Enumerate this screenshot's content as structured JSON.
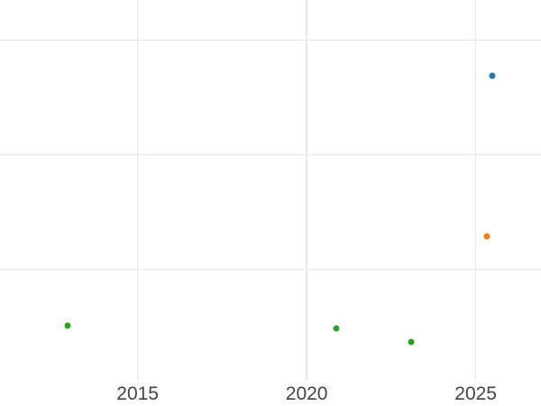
{
  "chart_data": {
    "type": "scatter",
    "title": "",
    "xlabel": "",
    "ylabel": "",
    "grid": true,
    "legend": false,
    "x_axis": {
      "tick_labels": [
        "2015",
        "2020",
        "2025"
      ],
      "tick_values": [
        2015,
        2020,
        2025
      ],
      "xlim": [
        2010.93,
        2026.93
      ]
    },
    "y_axis": {
      "tick_labels": [],
      "gridline_values": [
        1,
        2,
        3
      ],
      "ylim": [
        0.03,
        3.35
      ],
      "unit": "gridline-units (y labels not visible in cropped view)"
    },
    "series": [
      {
        "name": "blue-series",
        "color": "#1f77b4",
        "points": [
          {
            "x": 2025.49,
            "y": 2.69
          }
        ]
      },
      {
        "name": "orange-series",
        "color": "#ff7f0e",
        "points": [
          {
            "x": 2025.33,
            "y": 1.29
          }
        ]
      },
      {
        "name": "green-series",
        "color": "#2ca02c",
        "points": [
          {
            "x": 2012.93,
            "y": 0.51
          },
          {
            "x": 2020.88,
            "y": 0.49
          },
          {
            "x": 2023.09,
            "y": 0.37
          }
        ]
      }
    ],
    "style": {
      "background": "#ffffff",
      "gridline_color": "#e9e9e9",
      "tick_label_color": "#444444",
      "marker_diameter_px": 7
    }
  }
}
